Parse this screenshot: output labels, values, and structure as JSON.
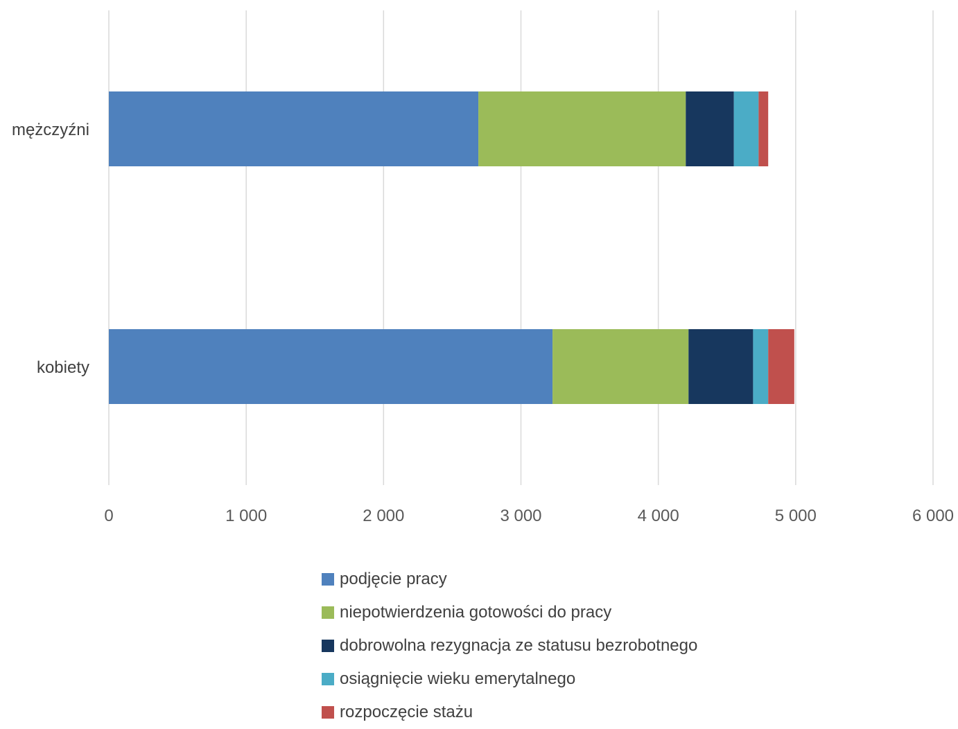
{
  "chart_data": {
    "type": "bar",
    "orientation": "horizontal",
    "stacked": true,
    "categories": [
      "mężczyźni",
      "kobiety"
    ],
    "series": [
      {
        "name": "podjęcie pracy",
        "color": "#4F81BD",
        "values": [
          2690,
          3230
        ]
      },
      {
        "name": "niepotwierdzenia gotowości do pracy",
        "color": "#9BBB59",
        "values": [
          1510,
          990
        ]
      },
      {
        "name": "dobrowolna rezygnacja ze statusu bezrobotnego",
        "color": "#17375E",
        "values": [
          350,
          470
        ]
      },
      {
        "name": "osiągnięcie wieku emerytalnego",
        "color": "#4BACC6",
        "values": [
          180,
          110
        ]
      },
      {
        "name": "rozpoczęcie stażu",
        "color": "#C0504D",
        "values": [
          70,
          190
        ]
      }
    ],
    "xlim": [
      0,
      6000
    ],
    "x_ticks": [
      0,
      1000,
      2000,
      3000,
      4000,
      5000,
      6000
    ],
    "x_tick_labels": [
      "0",
      "1 000",
      "2 000",
      "3 000",
      "4 000",
      "5 000",
      "6 000"
    ],
    "grid": true,
    "legend_position": "bottom",
    "title": "",
    "xlabel": "",
    "ylabel": ""
  }
}
